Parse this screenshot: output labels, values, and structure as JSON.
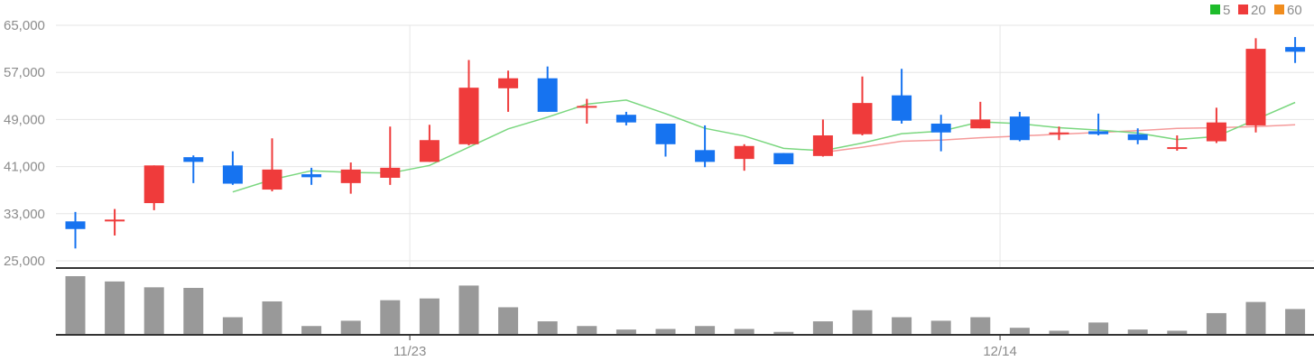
{
  "chart_data": {
    "type": "candlestick",
    "y_ticks": [
      "65,000",
      "57,000",
      "49,000",
      "41,000",
      "33,000",
      "25,000"
    ],
    "x_ticks": [
      {
        "index": 8.5,
        "label": "11/23"
      },
      {
        "index": 23.5,
        "label": "12/14"
      }
    ],
    "ylim": [
      25000,
      65000
    ],
    "grid": true,
    "legend_position": "top-right",
    "legend": [
      {
        "label": "5",
        "color": "#1ebc2b"
      },
      {
        "label": "20",
        "color": "#ef3b3b"
      },
      {
        "label": "60",
        "color": "#f08c1d"
      }
    ],
    "colors": {
      "up": "#ef3b3b",
      "down": "#1673f0",
      "volume": "#999999",
      "ma5": "#7ad77f",
      "ma20": "#f59a9a"
    },
    "candles": [
      {
        "open": 31700,
        "high": 33300,
        "low": 27100,
        "close": 30400
      },
      {
        "open": 32000,
        "high": 33800,
        "low": 29300,
        "close": 32000
      },
      {
        "open": 34800,
        "high": 41200,
        "low": 33600,
        "close": 41200
      },
      {
        "open": 42600,
        "high": 42900,
        "low": 38200,
        "close": 41800
      },
      {
        "open": 41200,
        "high": 43600,
        "low": 37900,
        "close": 38100
      },
      {
        "open": 37100,
        "high": 45800,
        "low": 36800,
        "close": 40500
      },
      {
        "open": 39700,
        "high": 40800,
        "low": 37900,
        "close": 39200
      },
      {
        "open": 38200,
        "high": 41700,
        "low": 36400,
        "close": 40500
      },
      {
        "open": 39100,
        "high": 47800,
        "low": 37900,
        "close": 40800
      },
      {
        "open": 41800,
        "high": 48100,
        "low": 41800,
        "close": 45500
      },
      {
        "open": 44800,
        "high": 59100,
        "low": 44600,
        "close": 54400
      },
      {
        "open": 54300,
        "high": 57300,
        "low": 50300,
        "close": 56000
      },
      {
        "open": 56000,
        "high": 58000,
        "low": 50300,
        "close": 50300
      },
      {
        "open": 51000,
        "high": 52500,
        "low": 48300,
        "close": 51300
      },
      {
        "open": 49800,
        "high": 50300,
        "low": 48000,
        "close": 48500
      },
      {
        "open": 48300,
        "high": 48300,
        "low": 42700,
        "close": 44800
      },
      {
        "open": 43800,
        "high": 48000,
        "low": 40900,
        "close": 41800
      },
      {
        "open": 42300,
        "high": 44800,
        "low": 40300,
        "close": 44500
      },
      {
        "open": 43300,
        "high": 43300,
        "low": 41400,
        "close": 41400
      },
      {
        "open": 42800,
        "high": 49000,
        "low": 42700,
        "close": 46300
      },
      {
        "open": 46500,
        "high": 56300,
        "low": 46300,
        "close": 51800
      },
      {
        "open": 53100,
        "high": 57600,
        "low": 48300,
        "close": 48800
      },
      {
        "open": 48300,
        "high": 49800,
        "low": 43600,
        "close": 46800
      },
      {
        "open": 47500,
        "high": 52000,
        "low": 47500,
        "close": 49000
      },
      {
        "open": 49500,
        "high": 50300,
        "low": 45300,
        "close": 45500
      },
      {
        "open": 46500,
        "high": 47800,
        "low": 45500,
        "close": 46800
      },
      {
        "open": 47000,
        "high": 50000,
        "low": 46300,
        "close": 46500
      },
      {
        "open": 46500,
        "high": 47500,
        "low": 44800,
        "close": 45500
      },
      {
        "open": 44000,
        "high": 46300,
        "low": 43700,
        "close": 44300
      },
      {
        "open": 45300,
        "high": 51000,
        "low": 45000,
        "close": 48500
      },
      {
        "open": 48000,
        "high": 62800,
        "low": 46800,
        "close": 61000
      },
      {
        "open": 61300,
        "high": 63000,
        "low": 58600,
        "close": 60500
      }
    ],
    "ma5": [
      null,
      null,
      null,
      null,
      36700,
      38800,
      40300,
      40000,
      39900,
      41200,
      44300,
      47400,
      49400,
      51600,
      52300,
      50000,
      47500,
      46200,
      44100,
      43700,
      45000,
      46600,
      47000,
      48600,
      48300,
      47600,
      47200,
      46700,
      45600,
      46100,
      49000,
      51900
    ],
    "ma20": [
      null,
      null,
      null,
      null,
      null,
      null,
      null,
      null,
      null,
      null,
      null,
      null,
      null,
      null,
      null,
      null,
      null,
      null,
      null,
      43400,
      44300,
      45300,
      45500,
      45900,
      46200,
      46500,
      46800,
      47100,
      47500,
      47600,
      47800,
      48100
    ],
    "volumes": [
      100,
      91,
      81,
      80,
      30,
      57,
      15,
      24,
      59,
      62,
      84,
      47,
      23,
      15,
      9,
      10,
      15,
      10,
      5,
      23,
      42,
      30,
      24,
      30,
      12,
      7,
      21,
      9,
      7,
      37,
      56,
      44
    ]
  }
}
